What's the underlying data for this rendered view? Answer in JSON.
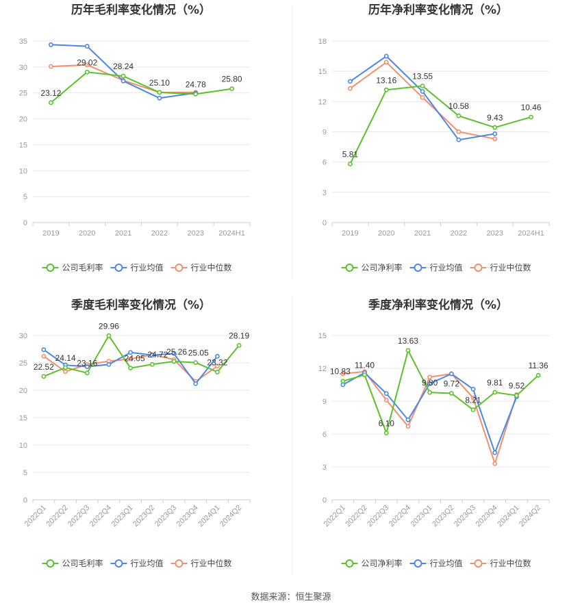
{
  "source_note": "数据来源：恒生聚源",
  "colors": {
    "company": "#5ac12a",
    "industry_avg": "#4a86e8",
    "industry_median": "#f28e6b"
  },
  "chart_data": [
    {
      "type": "line",
      "title": "历年毛利率变化情况（%）",
      "categories": [
        "2019",
        "2020",
        "2021",
        "2022",
        "2023",
        "2024H1"
      ],
      "yticks": [
        "0",
        "5",
        "10",
        "15",
        "20",
        "25",
        "30",
        "35"
      ],
      "ylim": [
        0,
        35
      ],
      "legend": [
        "公司毛利率",
        "行业均值",
        "行业中位数"
      ],
      "series": [
        {
          "name": "公司毛利率",
          "values": [
            23.12,
            29.02,
            28.24,
            25.1,
            24.78,
            25.8
          ],
          "labels": [
            "23.12",
            "29.02",
            "28.24",
            "25.10",
            "24.78",
            "25.80"
          ]
        },
        {
          "name": "行业均值",
          "values": [
            34.3,
            34.0,
            27.3,
            24.0,
            25.0,
            null
          ]
        },
        {
          "name": "行业中位数",
          "values": [
            30.1,
            30.4,
            27.4,
            25.1,
            25.1,
            null
          ]
        }
      ]
    },
    {
      "type": "line",
      "title": "历年净利率变化情况（%）",
      "categories": [
        "2019",
        "2020",
        "2021",
        "2022",
        "2023",
        "2024H1"
      ],
      "yticks": [
        "0",
        "3",
        "6",
        "9",
        "12",
        "15",
        "18"
      ],
      "ylim": [
        0,
        18
      ],
      "legend": [
        "公司净利率",
        "行业均值",
        "行业中位数"
      ],
      "series": [
        {
          "name": "公司净利率",
          "values": [
            5.81,
            13.16,
            13.55,
            10.58,
            9.43,
            10.46
          ],
          "labels": [
            "5.81",
            "13.16",
            "13.55",
            "10.58",
            "9.43",
            "10.46"
          ]
        },
        {
          "name": "行业均值",
          "values": [
            14.0,
            16.5,
            13.0,
            8.2,
            8.8,
            null
          ]
        },
        {
          "name": "行业中位数",
          "values": [
            13.3,
            15.9,
            12.4,
            9.0,
            8.3,
            null
          ]
        }
      ]
    },
    {
      "type": "line",
      "title": "季度毛利率变化情况（%）",
      "categories": [
        "2022Q1",
        "2022Q2",
        "2022Q3",
        "2022Q4",
        "2023Q1",
        "2023Q2",
        "2023Q3",
        "2023Q4",
        "2024Q1",
        "2024Q2"
      ],
      "yticks": [
        "0",
        "5",
        "10",
        "15",
        "20",
        "25",
        "30"
      ],
      "ylim": [
        0,
        30
      ],
      "legend": [
        "公司毛利率",
        "行业均值",
        "行业中位数"
      ],
      "series": [
        {
          "name": "公司毛利率",
          "values": [
            22.52,
            24.14,
            23.16,
            29.96,
            24.05,
            24.72,
            25.26,
            25.05,
            23.32,
            28.19
          ],
          "labels": [
            "22.52",
            "24.14",
            "23.16",
            "29.96",
            "24.05",
            "24.72",
            "25.26",
            "25.05",
            "23.32",
            "28.19"
          ]
        },
        {
          "name": "行业均值",
          "values": [
            27.4,
            24.6,
            24.3,
            24.7,
            26.9,
            26.4,
            26.7,
            21.2,
            26.2,
            null
          ]
        },
        {
          "name": "行业中位数",
          "values": [
            26.2,
            23.4,
            24.7,
            25.3,
            25.7,
            26.5,
            25.6,
            21.6,
            24.4,
            null
          ]
        }
      ]
    },
    {
      "type": "line",
      "title": "季度净利率变化情况（%）",
      "categories": [
        "2022Q1",
        "2022Q2",
        "2022Q3",
        "2022Q4",
        "2023Q1",
        "2023Q2",
        "2023Q3",
        "2023Q4",
        "2024Q1",
        "2024Q2"
      ],
      "yticks": [
        "0",
        "3",
        "6",
        "9",
        "12",
        "15"
      ],
      "ylim": [
        0,
        15
      ],
      "legend": [
        "公司净利率",
        "行业均值",
        "行业中位数"
      ],
      "series": [
        {
          "name": "公司净利率",
          "values": [
            10.83,
            11.4,
            6.1,
            13.63,
            9.8,
            9.72,
            8.21,
            9.81,
            9.52,
            11.36
          ],
          "labels": [
            "10.83",
            "11.40",
            "6.10",
            "13.63",
            "9.80",
            "9.72",
            "8.21",
            "9.81",
            "9.52",
            "11.36"
          ]
        },
        {
          "name": "行业均值",
          "values": [
            10.5,
            11.6,
            9.7,
            7.3,
            10.6,
            11.5,
            10.1,
            4.3,
            9.4,
            null
          ]
        },
        {
          "name": "行业中位数",
          "values": [
            11.5,
            11.7,
            9.1,
            6.7,
            11.2,
            11.5,
            9.3,
            3.3,
            9.6,
            null
          ]
        }
      ]
    }
  ]
}
